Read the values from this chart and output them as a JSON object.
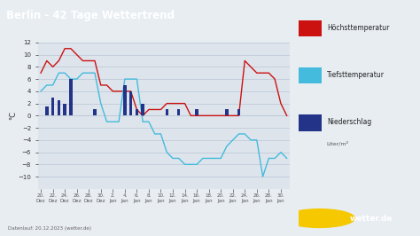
{
  "title": "Berlin - 42 Tage Wettertrend",
  "title_bg": "#1a5c8a",
  "title_color": "white",
  "ylabel": "°C",
  "footer": "Datenlauf: 20.12.2023 (wetter.de)",
  "fig_bg": "#e8edf2",
  "plot_bg": "#dde4ec",
  "ylim": [
    -12,
    12
  ],
  "yticks": [
    -10,
    -8,
    -6,
    -4,
    -2,
    0,
    2,
    4,
    6,
    8,
    10,
    12
  ],
  "x_labels": [
    "20.\nDez",
    "22.\nDez",
    "24.\nDez",
    "26.\nDez",
    "28.\nDez",
    "30.\nDez",
    "2.\nJan",
    "4.\nJan",
    "6.\nJan",
    "8.\nJan",
    "10.\nJan",
    "12.\nJan",
    "14.\nJan",
    "16.\nJan",
    "18.\nJan",
    "20.\nJan",
    "22.\nJan",
    "24.\nJan",
    "26.\nJan",
    "28.\nJan",
    "30.\nJan"
  ],
  "x_positions": [
    0,
    2,
    4,
    6,
    8,
    10,
    12,
    14,
    16,
    18,
    20,
    22,
    24,
    26,
    28,
    30,
    32,
    34,
    36,
    38,
    40
  ],
  "high_temp": [
    7,
    9,
    8,
    9,
    11,
    11,
    10,
    9,
    9,
    9,
    5,
    5,
    4,
    4,
    4,
    4,
    1,
    0,
    1,
    1,
    1,
    2,
    2,
    2,
    2,
    0,
    0,
    0,
    0,
    0,
    0,
    0,
    0,
    0,
    9,
    8,
    7,
    7,
    7,
    6,
    2,
    0
  ],
  "low_temp": [
    4,
    5,
    5,
    7,
    7,
    6,
    6,
    7,
    7,
    7,
    2,
    -1,
    -1,
    -1,
    6,
    6,
    6,
    -1,
    -1,
    -3,
    -3,
    -6,
    -7,
    -7,
    -8,
    -8,
    -8,
    -7,
    -7,
    -7,
    -7,
    -5,
    -4,
    -3,
    -3,
    -4,
    -4,
    -10,
    -7,
    -7,
    -6,
    -7
  ],
  "precip_x": [
    1,
    2,
    3,
    4,
    5,
    9,
    14,
    15,
    16,
    17,
    21,
    23,
    26,
    31,
    33
  ],
  "precip_h": [
    1.5,
    3,
    2.5,
    2,
    6,
    1,
    5,
    4,
    1,
    2,
    1,
    1,
    1,
    1,
    1
  ],
  "high_color": "#cc1111",
  "low_color": "#44bbdd",
  "precip_color": "#223388",
  "grid_color": "#c0ccd8",
  "legend": {
    "high_label": "Höchsttemperatur",
    "low_label": "Tiefsttemperatur",
    "precip_label": "Niederschlag",
    "precip_unit": "Liter/m²"
  }
}
